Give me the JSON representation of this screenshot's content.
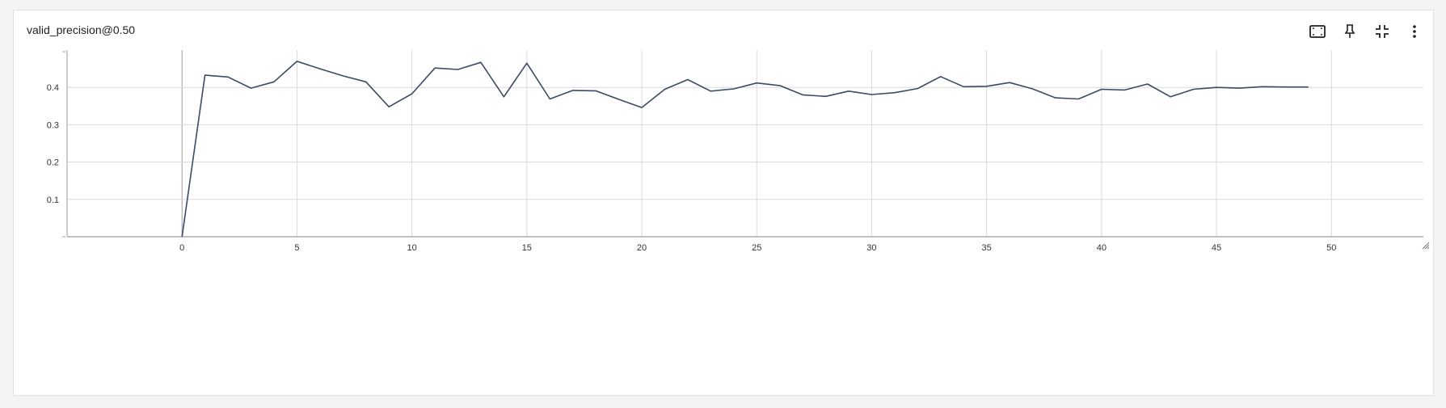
{
  "card": {
    "title": "valid_precision@0.50"
  },
  "toolbar": {
    "icons": [
      "fit-domain-icon",
      "pin-icon",
      "collapse-icon",
      "more-vert-icon"
    ]
  },
  "colors": {
    "line": "#3b4a66",
    "grid": "#d9d9d9",
    "axis": "#9e9e9e",
    "zero_axis": "#9e9e9e",
    "card_bg": "#ffffff",
    "page_bg": "#f1f3f4"
  },
  "chart_data": {
    "type": "line",
    "title": "valid_precision@0.50",
    "xlabel": "",
    "ylabel": "",
    "xlim": [
      -5,
      54
    ],
    "ylim": [
      0,
      0.5
    ],
    "x_ticks": [
      0,
      5,
      10,
      15,
      20,
      25,
      30,
      35,
      40,
      45,
      50
    ],
    "y_ticks": [
      0.1,
      0.2,
      0.3,
      0.4
    ],
    "grid": true,
    "legend": "none",
    "series": [
      {
        "x": [
          0,
          1,
          2,
          3,
          4,
          5,
          6,
          7,
          8,
          9,
          10,
          11,
          12,
          13,
          14,
          15,
          16,
          17,
          18,
          19,
          20,
          21,
          22,
          23,
          24,
          25,
          26,
          27,
          28,
          29,
          30,
          31,
          32,
          33,
          34,
          35,
          36,
          37,
          38,
          39,
          40,
          41,
          42,
          43,
          44,
          45,
          46,
          47,
          48,
          49
        ],
        "values": [
          0.0,
          0.433,
          0.428,
          0.398,
          0.415,
          0.47,
          0.45,
          0.431,
          0.415,
          0.348,
          0.383,
          0.452,
          0.448,
          0.467,
          0.375,
          0.465,
          0.369,
          0.392,
          0.391,
          0.368,
          0.346,
          0.395,
          0.421,
          0.39,
          0.396,
          0.412,
          0.405,
          0.38,
          0.376,
          0.39,
          0.381,
          0.386,
          0.397,
          0.429,
          0.402,
          0.403,
          0.413,
          0.396,
          0.372,
          0.369,
          0.395,
          0.393,
          0.409,
          0.375,
          0.395,
          0.4,
          0.398,
          0.402,
          0.401,
          0.401
        ]
      }
    ]
  }
}
